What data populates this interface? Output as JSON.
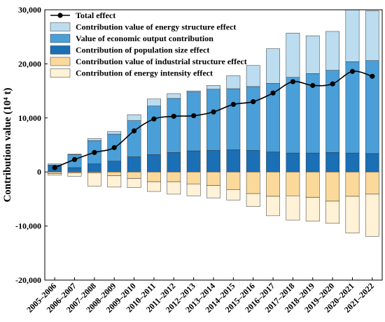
{
  "chart_data": {
    "type": "bar",
    "stacked": true,
    "ylabel": "Contribution value (10⁴ t)",
    "ylim": [
      -20000,
      30000
    ],
    "yticks": [
      "-20,000",
      "-10,000",
      "0",
      "10,000",
      "20,000",
      "30,000"
    ],
    "categories": [
      "2005–2006",
      "2006–2007",
      "2007–2008",
      "2008–2009",
      "2009–2010",
      "2010–2011",
      "2011–2012",
      "2012–2013",
      "2013–2014",
      "2014–2015",
      "2015–2016",
      "2016–2017",
      "2017–2018",
      "2018–2019",
      "2019–2020",
      "2020–2021",
      "2021–2022"
    ],
    "positive_series": [
      {
        "name": "Contribution of population size effect",
        "color": "#1a6fb5",
        "values": [
          1300,
          800,
          1500,
          2000,
          2800,
          3200,
          3600,
          3900,
          4000,
          4100,
          4000,
          3700,
          3500,
          3500,
          3600,
          3500,
          3400
        ]
      },
      {
        "name": "Value of economic output contribution",
        "color": "#4a9fd8",
        "values": [
          0,
          2400,
          4300,
          5000,
          6700,
          9000,
          10000,
          10900,
          11300,
          11300,
          11800,
          12700,
          14000,
          14700,
          15200,
          16900,
          17200
        ]
      },
      {
        "name": "Contribution value of energy structure effect",
        "color": "#bcdcef",
        "values": [
          200,
          100,
          400,
          500,
          1100,
          1300,
          900,
          200,
          700,
          2400,
          3900,
          6400,
          8200,
          7000,
          7200,
          9600,
          9200
        ]
      }
    ],
    "negative_series": [
      {
        "name": "Contribution value of industrial structure effect",
        "color": "#fbd99b",
        "values": [
          -300,
          -200,
          -200,
          -700,
          -1200,
          -1800,
          -1800,
          -2200,
          -2500,
          -3300,
          -4000,
          -4500,
          -4400,
          -4700,
          -5400,
          -4500,
          -4100
        ]
      },
      {
        "name": "Contribution of energy intensity effect",
        "color": "#fff2d6",
        "values": [
          -300,
          -600,
          -2400,
          -2100,
          -1700,
          -1800,
          -2300,
          -2200,
          -2300,
          -1900,
          -2400,
          -3600,
          -4500,
          -4400,
          -4100,
          -6800,
          -7800
        ]
      }
    ],
    "line_series": {
      "name": "Total effect",
      "color": "#000000",
      "values": [
        800,
        2300,
        3600,
        4500,
        7600,
        9800,
        10300,
        10400,
        11100,
        12500,
        13000,
        14600,
        16700,
        16000,
        16300,
        18600,
        17700
      ]
    },
    "legend": {
      "position": "top-left",
      "items": [
        {
          "name": "Total effect",
          "kind": "line",
          "color": "#000000"
        },
        {
          "name": "Contribution value of energy structure effect",
          "kind": "box",
          "color": "#bcdcef"
        },
        {
          "name": "Value of economic output contribution",
          "kind": "box",
          "color": "#4a9fd8"
        },
        {
          "name": "Contribution of population size effect",
          "kind": "box",
          "color": "#1a6fb5"
        },
        {
          "name": "Contribution value of industrial structure effect",
          "kind": "box",
          "color": "#fbd99b"
        },
        {
          "name": "Contribution of energy intensity effect",
          "kind": "box",
          "color": "#fff2d6"
        }
      ]
    },
    "grid": false
  }
}
